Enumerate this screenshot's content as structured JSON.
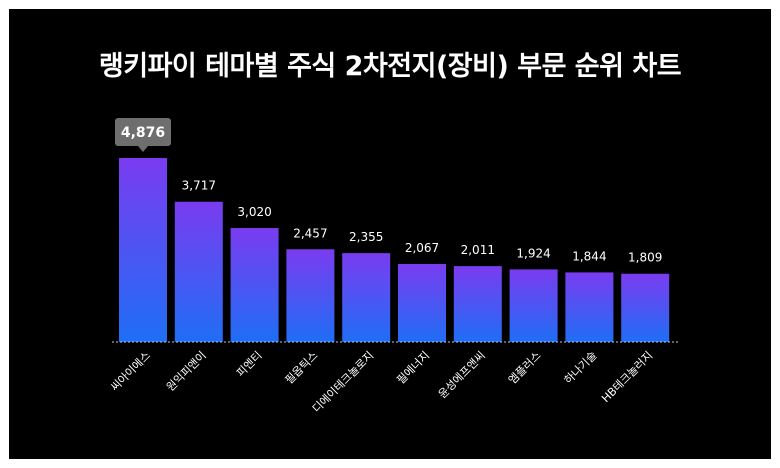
{
  "title": "랭키파이 테마별 주식 2차전지(장비) 부문 순위 차트",
  "colors": {
    "background": "#000000",
    "bar_top": "#7a3cf0",
    "bar_bottom": "#1f6ef5",
    "text": "#ffffff",
    "highlight_label_bg": "#6e6e6e",
    "baseline": "#bfc8e0"
  },
  "chart_data": {
    "type": "bar",
    "title": "랭키파이 테마별 주식 2차전지(장비) 부문 순위 차트",
    "categories": [
      "씨아이에스",
      "원익피앤이",
      "피엔티",
      "필옵틱스",
      "디에이테크놀로지",
      "필에너지",
      "윤성에프앤씨",
      "엠플러스",
      "하나기술",
      "HB테크놀러지"
    ],
    "values": [
      4876,
      3717,
      3020,
      2457,
      2355,
      2067,
      2011,
      1924,
      1844,
      1809
    ],
    "value_labels": [
      "4,876",
      "3,717",
      "3,020",
      "2,457",
      "2,355",
      "2,067",
      "2,011",
      "1,924",
      "1,844",
      "1,809"
    ],
    "highlighted_index": 0,
    "ylim": [
      0,
      4876
    ],
    "grid": false,
    "legend": "none",
    "xlabel": "",
    "ylabel": ""
  }
}
